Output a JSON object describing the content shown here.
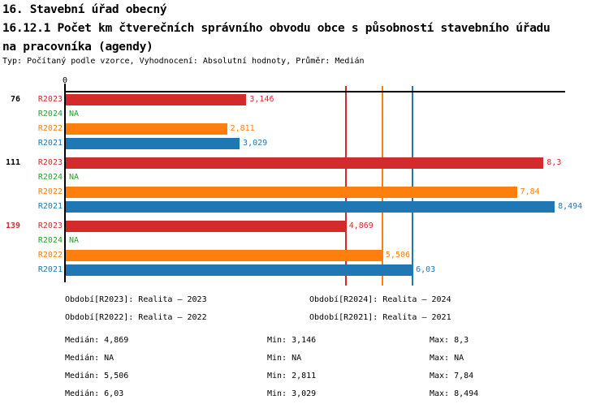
{
  "header": {
    "line1": "16. Stavební úřad obecný",
    "line2": "16.12.1 Počet km čtverečních správního obvodu obce s působností stavebního úřadu",
    "line3": "na pracovníka (agendy)",
    "meta": "Typ: Počítaný podle vzorce, Vyhodnocení: Absolutní hodnoty, Průměr: Medián"
  },
  "colors": {
    "r2023": "#d32b2b",
    "r2024": "#2ca02c",
    "r2022": "#ff7f0e",
    "r2021": "#1f77b4",
    "axis": "#000000",
    "highlight_group": "#d32b2b"
  },
  "chart_data": {
    "type": "bar",
    "orientation": "horizontal",
    "title": "16.12.1 Počet km čtverečních správního obvodu obce s působností stavebního úřadu na pracovníka (agendy)",
    "xlabel": "",
    "ylabel": "",
    "x_origin_label": "0",
    "x_range": [
      0,
      8.68
    ],
    "grid": false,
    "series_order": [
      "R2023",
      "R2024",
      "R2022",
      "R2021"
    ],
    "groups": [
      {
        "label": "76",
        "label_color": "#000000",
        "values": [
          {
            "series": "R2023",
            "value": 3.146,
            "display": "3,146"
          },
          {
            "series": "R2024",
            "value": null,
            "display": "NA"
          },
          {
            "series": "R2022",
            "value": 2.811,
            "display": "2,811"
          },
          {
            "series": "R2021",
            "value": 3.029,
            "display": "3,029"
          }
        ]
      },
      {
        "label": "111",
        "label_color": "#000000",
        "values": [
          {
            "series": "R2023",
            "value": 8.3,
            "display": "8,3"
          },
          {
            "series": "R2024",
            "value": null,
            "display": "NA"
          },
          {
            "series": "R2022",
            "value": 7.84,
            "display": "7,84"
          },
          {
            "series": "R2021",
            "value": 8.494,
            "display": "8,494"
          }
        ]
      },
      {
        "label": "139",
        "label_color": "#d32b2b",
        "values": [
          {
            "series": "R2023",
            "value": 4.869,
            "display": "4,869"
          },
          {
            "series": "R2024",
            "value": null,
            "display": "NA"
          },
          {
            "series": "R2022",
            "value": 5.506,
            "display": "5,506"
          },
          {
            "series": "R2021",
            "value": 6.03,
            "display": "6,03"
          }
        ]
      }
    ],
    "median_lines": [
      {
        "series": "R2023",
        "value": 4.869
      },
      {
        "series": "R2022",
        "value": 5.506
      },
      {
        "series": "R2021",
        "value": 6.03
      }
    ]
  },
  "legend": [
    {
      "id": "R2023",
      "label": "Období[R2023]: Realita – 2023"
    },
    {
      "id": "R2024",
      "label": "Období[R2024]: Realita – 2024"
    },
    {
      "id": "R2022",
      "label": "Období[R2022]: Realita – 2022"
    },
    {
      "id": "R2021",
      "label": "Období[R2021]: Realita – 2021"
    }
  ],
  "stats": [
    {
      "id": "R2023",
      "median": "Medián: 4,869",
      "min": "Min: 3,146",
      "max": "Max: 8,3"
    },
    {
      "id": "R2024",
      "median": "Medián: NA",
      "min": "Min: NA",
      "max": "Max: NA"
    },
    {
      "id": "R2022",
      "median": "Medián: 5,506",
      "min": "Min: 2,811",
      "max": "Max: 7,84"
    },
    {
      "id": "R2021",
      "median": "Medián: 6,03",
      "min": "Min: 3,029",
      "max": "Max: 8,494"
    }
  ]
}
